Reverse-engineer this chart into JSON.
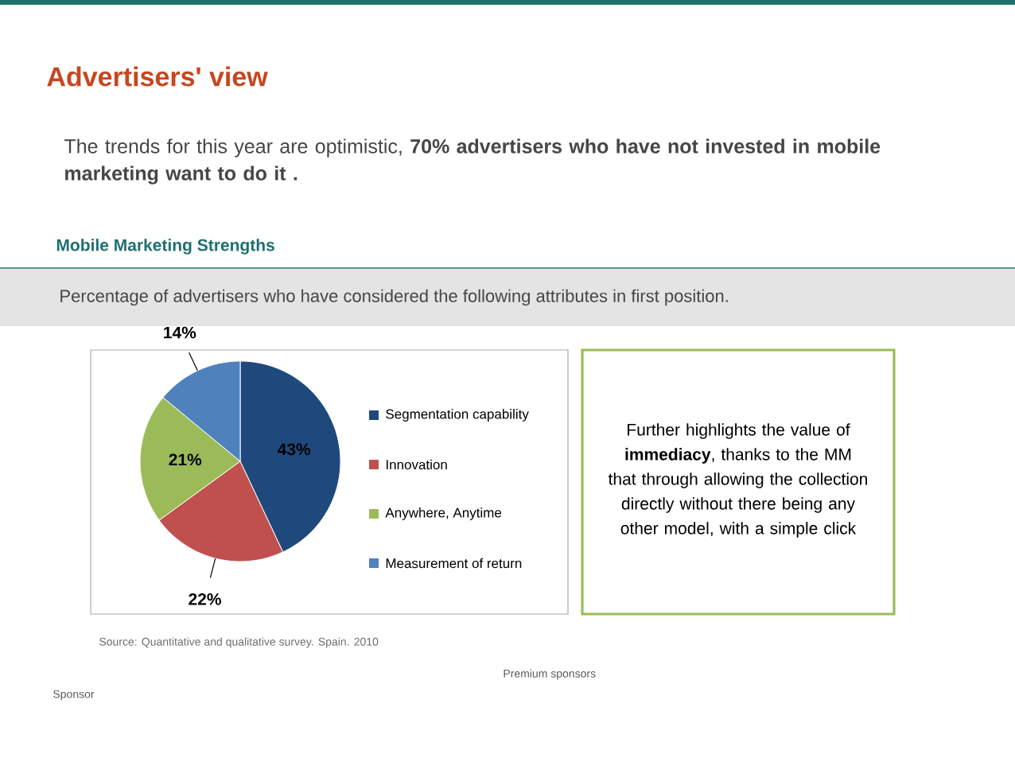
{
  "chart_data": {
    "type": "pie",
    "title": "Advertisers' view",
    "subtitle": "The trends for this year are optimistic, **70% advertisers who have not invested in mobile marketing want to do it .**",
    "categories": [
      "Segmentation capability",
      "Innovation",
      "Anywhere, Anytime",
      "Measurement of return"
    ],
    "values": [
      43,
      22,
      21,
      14
    ],
    "value_labels": [
      "43%",
      "22%",
      "21%",
      "14%"
    ],
    "colors": [
      "#1f497d",
      "#c0504d",
      "#9bbb59",
      "#4f81bd"
    ],
    "legend": "right",
    "annotations": [
      "Mobile Marketing Strengths",
      "Percentage of advertisers who have considered the following attributes in first position.",
      "Further highlights the value of **immediacy**, thanks to the MM that through allowing the collection directly without there being any other model, with a simple click",
      "Source: Quantitative and qualitative survey. Spain. 2010",
      "Premium sponsors",
      "Sponsor"
    ]
  }
}
